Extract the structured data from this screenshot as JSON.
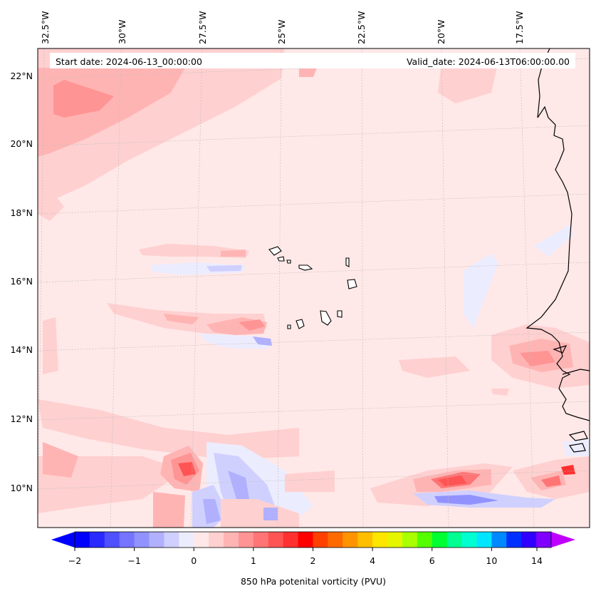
{
  "header": {
    "start_date": "Start date: 2024-06-13_00:00:00",
    "valid_date": "Valid_date: 2024-06-13T06:00:00.00"
  },
  "lon_labels": [
    "32.5°W",
    "30°W",
    "27.5°W",
    "25°W",
    "22.5°W",
    "20°W",
    "17.5°W"
  ],
  "lat_labels": [
    "22°N",
    "20°N",
    "18°N",
    "16°N",
    "14°N",
    "12°N",
    "10°N"
  ],
  "colorbar": {
    "label": "850 hPa potenital vorticity (PVU)",
    "ticks": [
      "−2",
      "−1",
      "0",
      "1",
      "2",
      "4",
      "6",
      "10",
      "14"
    ],
    "extend": "both",
    "colors": [
      "#0000ff",
      "#2a2aff",
      "#5050ff",
      "#7474ff",
      "#9292ff",
      "#b0b0ff",
      "#d0d0ff",
      "#ececff",
      "#ffe8e8",
      "#ffd0d0",
      "#ffb4b4",
      "#ff9494",
      "#ff7474",
      "#ff5454",
      "#ff3030",
      "#ff0000",
      "#ff4000",
      "#ff6a00",
      "#ff9400",
      "#ffbe00",
      "#ffe600",
      "#e6f500",
      "#aaff00",
      "#55ff00",
      "#00ff30",
      "#00ff90",
      "#00ffd0",
      "#00e6ff",
      "#0088ff",
      "#0030ff",
      "#3000ff",
      "#8000ff"
    ],
    "under_color": "#0000ff",
    "over_color": "#c000ff"
  },
  "map": {
    "background_color": "#ffe8e8",
    "gridlines": true,
    "projection": "conic"
  }
}
